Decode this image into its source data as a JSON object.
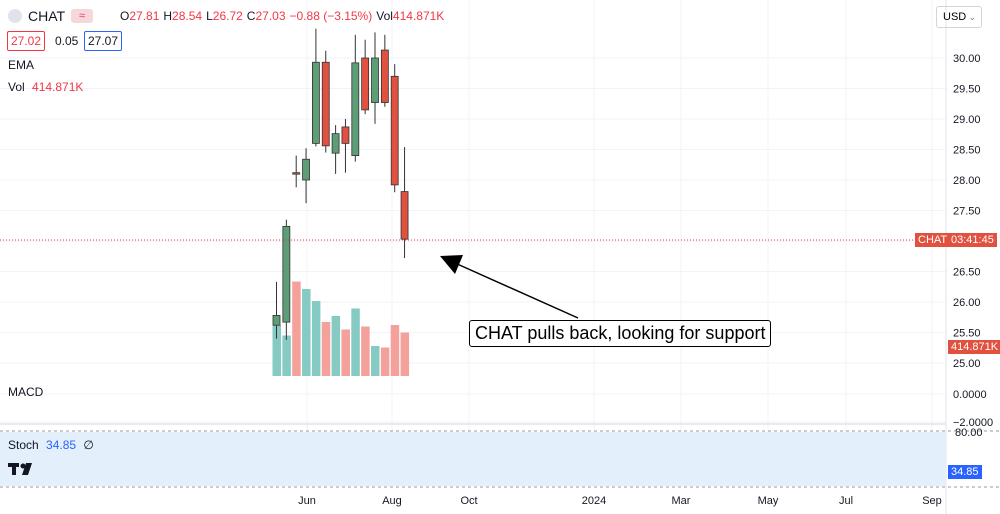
{
  "header": {
    "symbol": "CHAT",
    "ohlc": {
      "o_label": "O",
      "o": "27.81",
      "h_label": "H",
      "h": "28.54",
      "l_label": "L",
      "l": "26.72",
      "c_label": "C",
      "c": "27.03",
      "change": "−0.88 (−3.15%)",
      "vol_label": "Vol",
      "vol": "414.871K"
    },
    "sell_price": "27.02",
    "spread": "0.05",
    "buy_price": "27.07",
    "currency": "USD"
  },
  "indicators": {
    "ema": "EMA",
    "vol_label": "Vol",
    "vol_value": "414.871K",
    "macd": "MACD",
    "stoch_label": "Stoch",
    "stoch_value": "34.85",
    "stoch_zero": "∅"
  },
  "price_axis": {
    "ticks": [
      "30.00",
      "29.50",
      "29.00",
      "28.50",
      "28.00",
      "27.50",
      "27.00",
      "26.50",
      "26.00",
      "25.50",
      "25.00",
      "0.0000",
      "−2.0000"
    ],
    "last_price_tag": "CHAT",
    "countdown": "03:41:45",
    "volume_tag": "414.871K"
  },
  "stoch_axis": {
    "top_tick": "80.00",
    "value_tag": "34.85"
  },
  "time_axis": {
    "labels": [
      "Jun",
      "Aug",
      "Oct",
      "2024",
      "Mar",
      "May",
      "Jul",
      "Sep"
    ]
  },
  "annotation": "CHAT pulls back, looking for support",
  "colors": {
    "up": "#5d9e76",
    "down": "#e0513f",
    "vol_up": "#86cbc3",
    "vol_down": "#f4a09b"
  },
  "chart_data": {
    "type": "candlestick",
    "title": "CHAT",
    "ylim": [
      24.75,
      30.4
    ],
    "candles": [
      {
        "o": 25.62,
        "h": 26.33,
        "l": 25.4,
        "c": 25.78,
        "vol": 3.4,
        "up": true
      },
      {
        "o": 25.67,
        "h": 27.35,
        "l": 25.38,
        "c": 27.24,
        "vol": 2.7,
        "up": true
      },
      {
        "o": 28.12,
        "h": 28.4,
        "l": 27.88,
        "c": 28.12,
        "vol": 6.3,
        "up": false
      },
      {
        "o": 28.0,
        "h": 28.52,
        "l": 27.62,
        "c": 28.34,
        "vol": 5.8,
        "up": true
      },
      {
        "o": 28.6,
        "h": 30.48,
        "l": 28.55,
        "c": 29.93,
        "vol": 5.0,
        "up": true
      },
      {
        "o": 29.93,
        "h": 30.12,
        "l": 28.45,
        "c": 28.56,
        "vol": 3.6,
        "up": false
      },
      {
        "o": 28.44,
        "h": 28.9,
        "l": 28.1,
        "c": 28.76,
        "vol": 4.0,
        "up": true
      },
      {
        "o": 28.87,
        "h": 29.0,
        "l": 28.12,
        "c": 28.6,
        "vol": 3.1,
        "up": false
      },
      {
        "o": 28.4,
        "h": 30.38,
        "l": 28.3,
        "c": 29.92,
        "vol": 4.5,
        "up": true
      },
      {
        "o": 30.0,
        "h": 30.3,
        "l": 29.08,
        "c": 29.15,
        "vol": 3.3,
        "up": false
      },
      {
        "o": 29.27,
        "h": 30.42,
        "l": 28.92,
        "c": 30.0,
        "vol": 2.0,
        "up": true
      },
      {
        "o": 30.13,
        "h": 30.38,
        "l": 29.2,
        "c": 29.27,
        "vol": 1.9,
        "up": false
      },
      {
        "o": 29.7,
        "h": 29.9,
        "l": 27.8,
        "c": 27.92,
        "vol": 3.4,
        "up": false
      },
      {
        "o": 27.81,
        "h": 28.54,
        "l": 26.72,
        "c": 27.03,
        "vol": 2.9,
        "up": false
      }
    ]
  }
}
